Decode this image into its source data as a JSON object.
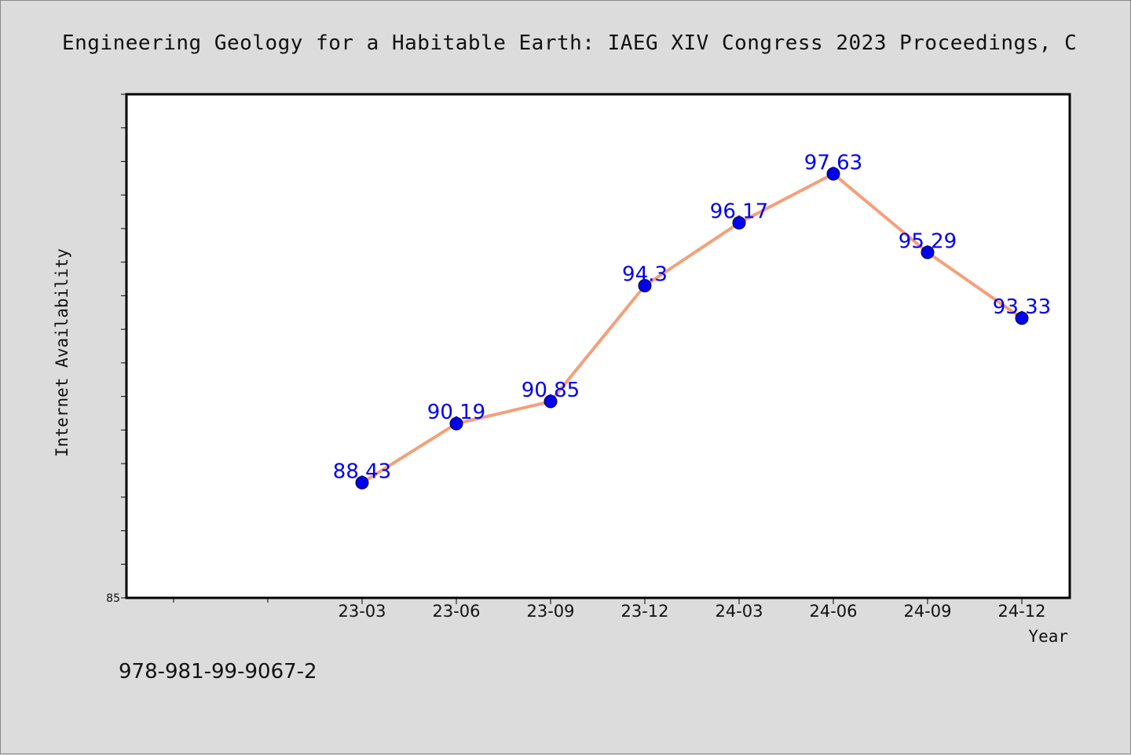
{
  "chart_data": {
    "type": "line",
    "title": "Engineering Geology for a Habitable Earth: IAEG XIV Congress 2023 Proceedings, C",
    "xlabel": "Year",
    "ylabel": "Internet Availability",
    "categories": [
      "23-03",
      "23-06",
      "23-09",
      "23-12",
      "24-03",
      "24-06",
      "24-09",
      "24-12"
    ],
    "values": [
      88.43,
      90.19,
      90.85,
      94.3,
      96.17,
      97.63,
      95.29,
      93.33
    ],
    "data_labels": [
      "88.43",
      "90.19",
      "90.85",
      "94.3",
      "96.17",
      "97.63",
      "95.29",
      "93.33"
    ],
    "ylim": [
      85,
      100
    ],
    "yticks_labeled": [
      85
    ],
    "ytick_labels": [
      "85"
    ],
    "grid": false,
    "line_color": "#f4a07a",
    "marker_color": "#0000ee",
    "label_color": "#0000ee"
  },
  "footer": {
    "isbn": "978-981-99-9067-2"
  }
}
